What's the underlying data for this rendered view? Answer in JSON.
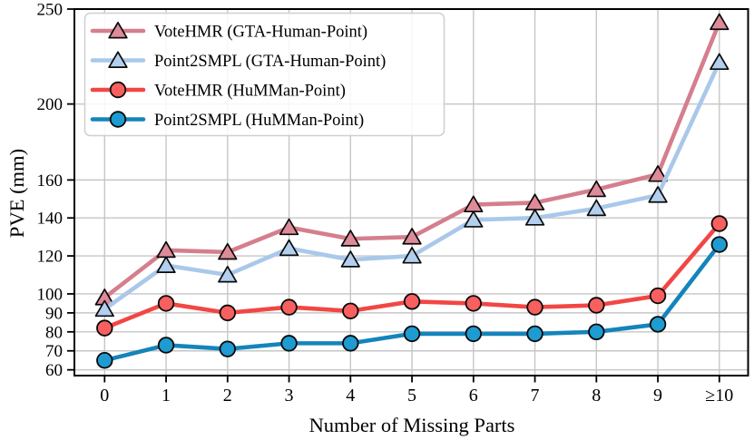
{
  "chart_data": {
    "type": "line",
    "title": "",
    "xlabel": "Number of Missing Parts",
    "ylabel": "PVE (mm)",
    "categories": [
      "0",
      "1",
      "2",
      "3",
      "4",
      "5",
      "6",
      "7",
      "8",
      "9",
      "≥10"
    ],
    "y_ticks": [
      60,
      70,
      80,
      90,
      100,
      120,
      140,
      160,
      200,
      250
    ],
    "ylim": [
      57,
      250
    ],
    "grid": true,
    "grid_color": "#c6c6c6",
    "axis_color": "#000000",
    "marker_edge_color": "#0a0a0a",
    "legend_position": "upper-left",
    "series": [
      {
        "name": "VoteHMR (GTA-Human-Point)",
        "marker": "triangle",
        "line_color": "#d57e8d",
        "marker_fill": "#de8b99",
        "values": [
          98,
          123,
          122,
          135,
          129,
          130,
          147,
          148,
          155,
          163,
          243
        ]
      },
      {
        "name": "Point2SMPL (GTA-Human-Point)",
        "marker": "triangle",
        "line_color": "#a9c8ea",
        "marker_fill": "#b3cfee",
        "values": [
          92,
          115,
          110,
          124,
          118,
          120,
          139,
          140,
          145,
          152,
          222
        ]
      },
      {
        "name": "VoteHMR (HuMMan-Point)",
        "marker": "circle",
        "line_color": "#f14744",
        "marker_fill": "#f7605f",
        "values": [
          82,
          95,
          90,
          93,
          91,
          96,
          95,
          93,
          94,
          99,
          137
        ]
      },
      {
        "name": "Point2SMPL (HuMMan-Point)",
        "marker": "circle",
        "line_color": "#1484bb",
        "marker_fill": "#1e9bd0",
        "values": [
          65,
          73,
          71,
          74,
          74,
          79,
          79,
          79,
          80,
          84,
          126
        ]
      }
    ]
  }
}
